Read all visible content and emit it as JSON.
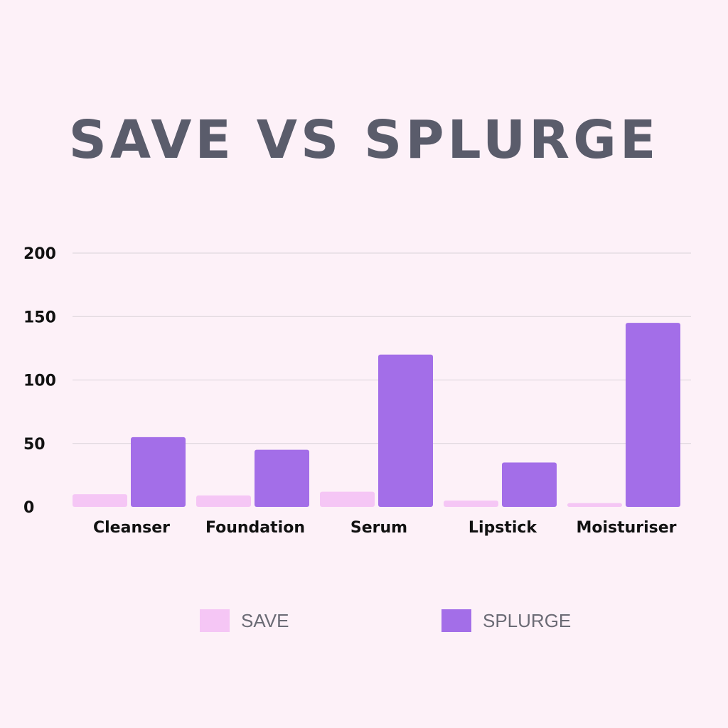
{
  "chart_data": {
    "type": "bar",
    "title": "SAVE VS SPLURGE",
    "categories": [
      "Cleanser",
      "Foundation",
      "Serum",
      "Lipstick",
      "Moisturiser"
    ],
    "series": [
      {
        "name": "SAVE",
        "color": "#f5c6f5",
        "values": [
          10,
          9,
          12,
          5,
          3
        ]
      },
      {
        "name": "SPLURGE",
        "color": "#a36ee8",
        "values": [
          55,
          45,
          120,
          35,
          145
        ]
      }
    ],
    "yticks": [
      "0",
      "50",
      "100",
      "150",
      "200"
    ],
    "ylim": [
      0,
      200
    ],
    "xlabel": "",
    "ylabel": "",
    "grid": true,
    "legend_position": "bottom"
  }
}
